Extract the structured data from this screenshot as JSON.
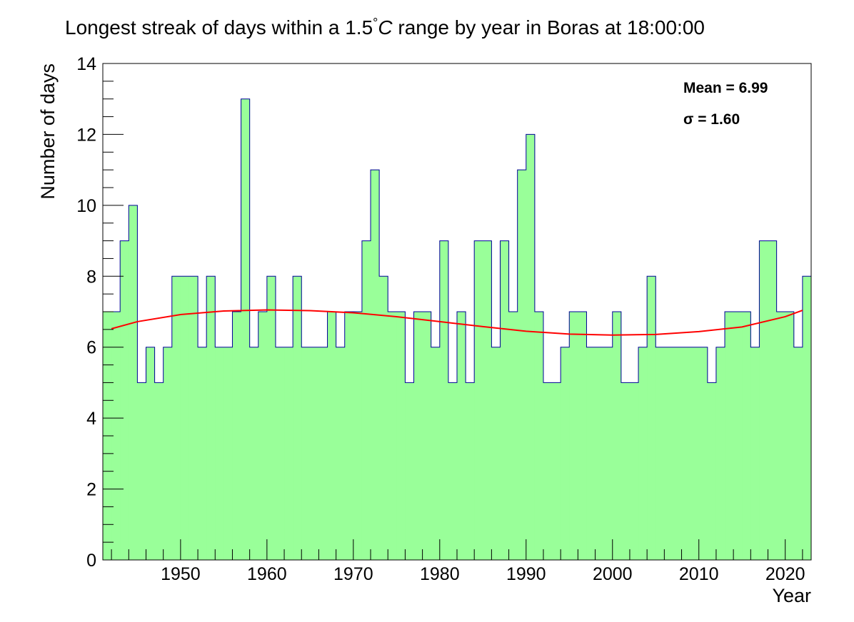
{
  "chart_data": {
    "type": "bar",
    "title": "Longest streak of days within a 1.5°C range by year in Boras at 18:00:00",
    "title_main": "Longest streak of days within a 1.5",
    "title_degree": "°",
    "title_unit": "C",
    "title_rest": " range by year in Boras at 18:00:00",
    "xlabel": "Year",
    "ylabel": "Number of days",
    "xlim": [
      1941,
      2023
    ],
    "ylim": [
      0,
      14
    ],
    "x_ticks": [
      1950,
      1960,
      1970,
      1980,
      1990,
      2000,
      2010,
      2020
    ],
    "y_ticks": [
      0,
      2,
      4,
      6,
      8,
      10,
      12,
      14
    ],
    "grid": false,
    "stats": {
      "mean_label": "Mean = 6.99",
      "sigma_label": "σ = 1.60"
    },
    "series": [
      {
        "bin_start": 1941,
        "bin_width": 1,
        "values": [
          7,
          7,
          9,
          10,
          5,
          6,
          5,
          6,
          8,
          8,
          8,
          6,
          8,
          6,
          6,
          7,
          13,
          6,
          7,
          8,
          6,
          6,
          8,
          6,
          6,
          6,
          7,
          6,
          7,
          7,
          9,
          11,
          8,
          7,
          7,
          5,
          7,
          7,
          6,
          9,
          5,
          7,
          5,
          9,
          9,
          6,
          9,
          7,
          11,
          12,
          7,
          5,
          5,
          6,
          7,
          7,
          6,
          6,
          6,
          7,
          5,
          5,
          6,
          8,
          6,
          6,
          6,
          6,
          6,
          6,
          5,
          6,
          7,
          7,
          7,
          6,
          9,
          9,
          7,
          7,
          6,
          8
        ],
        "fill_color": "#99ff99",
        "line_color": "#000099"
      },
      {
        "type": "line",
        "x": [
          1942,
          1945,
          1950,
          1955,
          1960,
          1965,
          1970,
          1975,
          1980,
          1985,
          1990,
          1995,
          2000,
          2005,
          2010,
          2015,
          2020,
          2022
        ],
        "values": [
          6.52,
          6.72,
          6.92,
          7.02,
          7.05,
          7.03,
          6.97,
          6.86,
          6.72,
          6.58,
          6.45,
          6.37,
          6.34,
          6.36,
          6.44,
          6.57,
          6.86,
          7.04
        ],
        "line_color": "#ff0000"
      }
    ]
  }
}
